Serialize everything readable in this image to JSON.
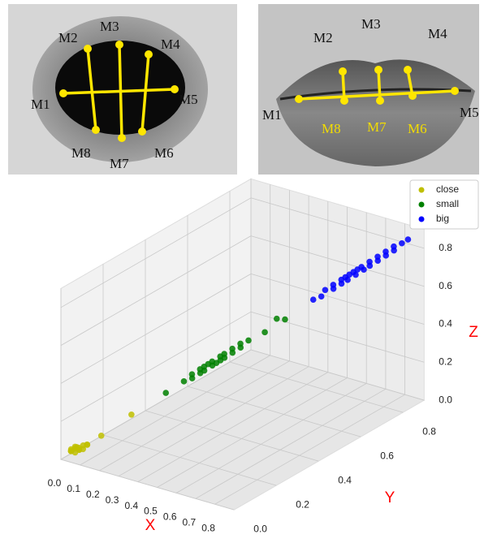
{
  "images": [
    {
      "labels": [
        "M1",
        "M2",
        "M3",
        "M4",
        "M5",
        "M6",
        "M7",
        "M8"
      ]
    },
    {
      "labels": [
        "M1",
        "M2",
        "M3",
        "M4",
        "M5",
        "M6",
        "M7",
        "M8"
      ]
    }
  ],
  "chart_data": {
    "type": "scatter3d",
    "x_label": "X",
    "y_label": "Y",
    "z_label": "Z",
    "xlim": [
      0,
      0.9
    ],
    "ylim": [
      0,
      0.9
    ],
    "zlim": [
      0,
      0.9
    ],
    "xticks": [
      {
        "value": 0,
        "label": "0.0"
      },
      0.1,
      0.2,
      0.3,
      0.4,
      0.5,
      0.6,
      0.7,
      0.8
    ],
    "yticks": [
      {
        "value": 0,
        "label": "0.0"
      },
      0.2,
      0.4,
      0.6,
      0.8
    ],
    "zticks": [
      {
        "value": 0,
        "label": "0.0"
      },
      0.2,
      0.4,
      0.6,
      0.8
    ],
    "grid": true,
    "legend": "upper right",
    "series": [
      {
        "name": "close",
        "color": "#bfbf00",
        "x": [
          0.02,
          0.03,
          0.04,
          0.05,
          0.03,
          0.04,
          0.06,
          0.05,
          0.02,
          0.04,
          0.07,
          0.03,
          0.05,
          0.06,
          0.1,
          0.18
        ],
        "y": [
          0.03,
          0.02,
          0.05,
          0.04,
          0.04,
          0.03,
          0.05,
          0.06,
          0.03,
          0.05,
          0.06,
          0.04,
          0.03,
          0.07,
          0.1,
          0.17
        ],
        "z": [
          0.03,
          0.04,
          0.03,
          0.05,
          0.02,
          0.05,
          0.04,
          0.05,
          0.04,
          0.03,
          0.06,
          0.05,
          0.06,
          0.05,
          0.09,
          0.18
        ]
      },
      {
        "name": "small",
        "color": "#008000",
        "x": [
          0.26,
          0.31,
          0.32,
          0.33,
          0.34,
          0.35,
          0.35,
          0.36,
          0.37,
          0.37,
          0.38,
          0.38,
          0.39,
          0.4,
          0.4,
          0.41,
          0.42,
          0.43,
          0.44,
          0.45,
          0.47,
          0.5,
          0.54,
          0.55
        ],
        "y": [
          0.26,
          0.3,
          0.33,
          0.32,
          0.35,
          0.34,
          0.36,
          0.35,
          0.38,
          0.36,
          0.37,
          0.39,
          0.4,
          0.39,
          0.41,
          0.4,
          0.43,
          0.42,
          0.45,
          0.44,
          0.46,
          0.51,
          0.53,
          0.56
        ],
        "z": [
          0.26,
          0.31,
          0.31,
          0.34,
          0.33,
          0.36,
          0.34,
          0.37,
          0.36,
          0.38,
          0.39,
          0.37,
          0.38,
          0.41,
          0.39,
          0.42,
          0.41,
          0.44,
          0.43,
          0.46,
          0.47,
          0.49,
          0.56,
          0.54
        ]
      },
      {
        "name": "big",
        "color": "#0000ff",
        "x": [
          0.62,
          0.64,
          0.66,
          0.67,
          0.68,
          0.69,
          0.7,
          0.7,
          0.71,
          0.72,
          0.72,
          0.73,
          0.74,
          0.74,
          0.75,
          0.76,
          0.77,
          0.78,
          0.79,
          0.8,
          0.81,
          0.82,
          0.83,
          0.85,
          0.86
        ],
        "y": [
          0.63,
          0.65,
          0.65,
          0.68,
          0.67,
          0.7,
          0.69,
          0.72,
          0.7,
          0.71,
          0.74,
          0.72,
          0.73,
          0.76,
          0.74,
          0.77,
          0.76,
          0.79,
          0.78,
          0.81,
          0.8,
          0.83,
          0.82,
          0.84,
          0.86
        ],
        "z": [
          0.62,
          0.63,
          0.67,
          0.66,
          0.69,
          0.68,
          0.71,
          0.69,
          0.72,
          0.73,
          0.71,
          0.74,
          0.75,
          0.73,
          0.76,
          0.75,
          0.78,
          0.77,
          0.8,
          0.79,
          0.82,
          0.81,
          0.84,
          0.85,
          0.86
        ]
      }
    ]
  }
}
